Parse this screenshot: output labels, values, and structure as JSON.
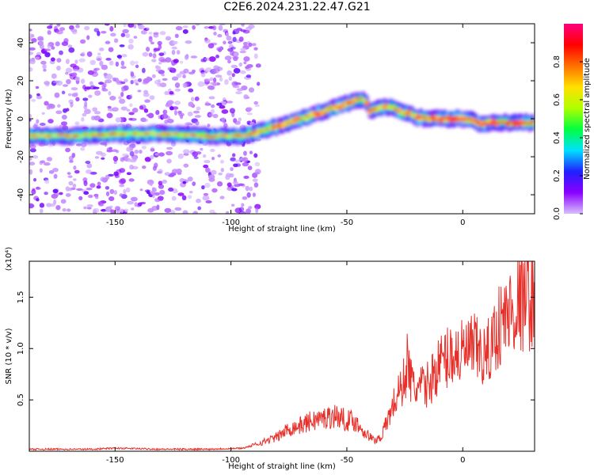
{
  "title": "C2E6.2024.231.22.47.G21",
  "chart_data": [
    {
      "type": "heatmap",
      "xlabel": "Height of straight line (km)",
      "ylabel": "Frequency (Hz)",
      "xlim": [
        -187,
        31
      ],
      "ylim": [
        -50,
        50
      ],
      "xticks": [
        -150,
        -100,
        -50,
        0
      ],
      "yticks": [
        -40,
        -20,
        0,
        20,
        40
      ],
      "grid": false,
      "ridge": {
        "x": [
          -187,
          -170,
          -150,
          -130,
          -110,
          -95,
          -88,
          -80,
          -70,
          -62,
          -55,
          -50,
          -45,
          -42,
          -40,
          -35,
          -30,
          -26,
          -23,
          -20,
          -15,
          -10,
          -5,
          0,
          5,
          8,
          12,
          20,
          31
        ],
        "frequency_hz": [
          -9,
          -9,
          -8,
          -8,
          -9,
          -9,
          -7,
          -4,
          0,
          3,
          6,
          8,
          10,
          10,
          4,
          6,
          6,
          3,
          3,
          1,
          0,
          0,
          0,
          0,
          -1,
          -3,
          -2,
          -2,
          -2
        ]
      },
      "colorbar": {
        "label": "Normalized spectral amplitude",
        "range": [
          0,
          1
        ],
        "ticks": [
          "0.0",
          "0.2",
          "0.4",
          "0.6",
          "0.8"
        ],
        "colors": [
          "#d8c0ff",
          "#8a00ff",
          "#2020ff",
          "#00e0ff",
          "#00ff40",
          "#b0ff00",
          "#ffe000",
          "#ff7000",
          "#ff0000",
          "#ff0080"
        ]
      }
    },
    {
      "type": "line",
      "xlabel": "Height of straight line (km)",
      "ylabel": "SNR (10 * v/v)",
      "y_scale_label": "(x10⁴)",
      "xlim": [
        -187,
        31
      ],
      "ylim": [
        0,
        1.85
      ],
      "xticks": [
        -150,
        -100,
        -50,
        0
      ],
      "yticks": [
        0.5,
        1.0,
        1.5
      ],
      "color": "#e8302a",
      "series": [
        {
          "x": [
            -187,
            -160,
            -150,
            -130,
            -110,
            -95,
            -90,
            -85,
            -80,
            -75,
            -70,
            -65,
            -60,
            -55,
            -50,
            -47,
            -42,
            -38,
            -35,
            -30,
            -28,
            -25,
            -24,
            -22,
            -20,
            -15,
            -10,
            -5,
            0,
            5,
            10,
            15,
            20,
            25,
            31
          ],
          "values": [
            0.02,
            0.02,
            0.03,
            0.02,
            0.02,
            0.03,
            0.06,
            0.1,
            0.14,
            0.22,
            0.25,
            0.3,
            0.32,
            0.35,
            0.3,
            0.3,
            0.18,
            0.1,
            0.15,
            0.45,
            0.55,
            0.7,
            0.9,
            0.65,
            0.6,
            0.65,
            0.85,
            0.95,
            0.95,
            1.0,
            0.9,
            1.2,
            1.35,
            1.45,
            1.52
          ]
        }
      ]
    }
  ]
}
